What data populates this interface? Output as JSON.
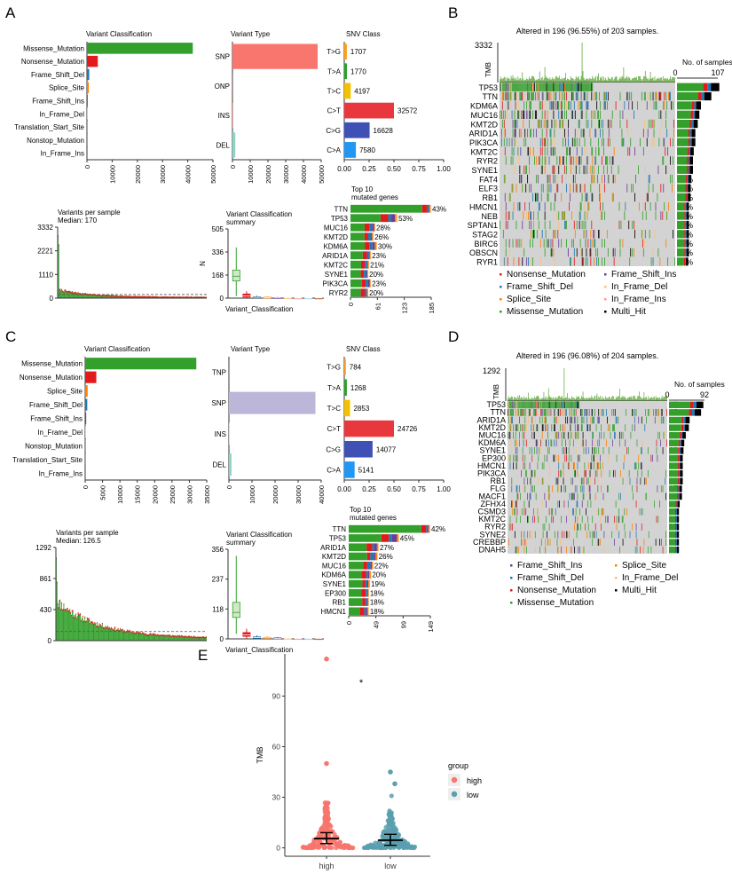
{
  "colors": {
    "missense": "#33a02c",
    "nonsense": "#e31a1c",
    "frameshift_del": "#1f78b4",
    "splice": "#ff7f00",
    "frameshift_ins": "#6a3d9a",
    "inframe_del": "#fdbf6f",
    "translation": "#fb9a99",
    "nonstop": "#a6cee3",
    "inframe_ins": "#b15928",
    "multi": "#000000",
    "snp": "#f8766d",
    "snp_c": "#bcb6d9",
    "del": "#8dd3c7",
    "tg": "#ff9f1c",
    "ta": "#2ca02c",
    "tc": "#f5c000",
    "ct": "#e8383d",
    "cg": "#3f51b5",
    "ca": "#2196f3",
    "tmb": "#5fa83a",
    "grey": "#d3d3d3",
    "high": "#f8766d",
    "low": "#5b9fb0"
  },
  "panels": {
    "a": "A",
    "b": "B",
    "c": "C",
    "d": "D",
    "e": "E"
  },
  "chart_data": [
    {
      "id": "A-vc",
      "type": "bar",
      "title": "Variant Classification",
      "categories": [
        "Missense_Mutation",
        "Nonsense_Mutation",
        "Frame_Shift_Del",
        "Splice_Site",
        "Frame_Shift_Ins",
        "In_Frame_Del",
        "Translation_Start_Site",
        "Nonstop_Mutation",
        "In_Frame_Ins"
      ],
      "values": [
        42000,
        4300,
        900,
        700,
        300,
        120,
        40,
        30,
        20
      ],
      "xticks": [
        "0",
        "10000",
        "20000",
        "30000",
        "40000",
        "50000"
      ],
      "xlim": [
        0,
        50000
      ]
    },
    {
      "id": "A-vt",
      "type": "bar",
      "title": "Variant Type",
      "categories": [
        "SNP",
        "ONP",
        "INS",
        "DEL"
      ],
      "values": [
        48000,
        60,
        300,
        1600
      ],
      "xticks": [
        "0",
        "10000",
        "20000",
        "30000",
        "40000",
        "50000"
      ],
      "xlim": [
        0,
        50000
      ]
    },
    {
      "id": "A-snv",
      "type": "bar",
      "title": "SNV Class",
      "categories": [
        "T>G",
        "T>A",
        "T>C",
        "C>T",
        "C>G",
        "C>A"
      ],
      "values": [
        1707,
        1770,
        4197,
        32572,
        16628,
        7580
      ],
      "fractions": [
        0.026,
        0.027,
        0.065,
        0.5,
        0.255,
        0.117
      ],
      "labels": [
        "1707",
        "1770",
        "4197",
        "32572",
        "16628",
        "7580"
      ],
      "xticks": [
        "0.00",
        "0.25",
        "0.50",
        "0.75",
        "1.00"
      ]
    },
    {
      "id": "A-vps",
      "type": "bar",
      "title": "Variants per sample",
      "subtitle": "Median: 170",
      "yticks": [
        "0",
        "1110",
        "2221",
        "3332"
      ],
      "ylim": [
        0,
        3332
      ],
      "median": 170
    },
    {
      "id": "A-vcs",
      "type": "box",
      "title": "Variant Classification",
      "subtitle": "summary",
      "ylabel": "N",
      "xlabel": "Variant_Classification",
      "yticks": [
        "0",
        "168",
        "336",
        "505"
      ],
      "ylim": [
        0,
        505
      ]
    },
    {
      "id": "A-top",
      "type": "bar",
      "title": "Top 10",
      "subtitle": "mutated genes",
      "categories": [
        "TTN",
        "TP53",
        "MUC16",
        "KMT2D",
        "KDM6A",
        "ARID1A",
        "KMT2C",
        "SYNE1",
        "PIK3CA",
        "RYR2"
      ],
      "values": [
        185,
        108,
        57,
        53,
        61,
        47,
        43,
        41,
        47,
        41
      ],
      "labels": [
        "43%",
        "53%",
        "28%",
        "26%",
        "30%",
        "23%",
        "21%",
        "20%",
        "23%",
        "20%"
      ],
      "xticks": [
        "0",
        "61",
        "123",
        "185"
      ],
      "xlim": [
        0,
        185
      ]
    },
    {
      "id": "B-onco",
      "type": "heatmap",
      "title": "Altered in 196 (96.55%) of 203 samples.",
      "tmb_label": "TMB",
      "tmb_max": "3332",
      "ns_label": "No. of samples",
      "ns_ticks": [
        "0",
        "107"
      ],
      "ns_max": 107,
      "genes": [
        "TP53",
        "TTN",
        "KDM6A",
        "MUC16",
        "KMT2D",
        "ARID1A",
        "PIK3CA",
        "KMT2C",
        "RYR2",
        "SYNE1",
        "FAT4",
        "ELF3",
        "RB1",
        "HMCN1",
        "NEB",
        "SPTAN1",
        "STAG2",
        "BIRC6",
        "OBSCN",
        "RYR1"
      ],
      "pct": [
        "53%",
        "43%",
        "30%",
        "28%",
        "26%",
        "23%",
        "23%",
        "21%",
        "20%",
        "20%",
        "18%",
        "17%",
        "17%",
        "15%",
        "15%",
        "15%",
        "15%",
        "15%",
        "15%",
        "14%"
      ],
      "freq": [
        0.53,
        0.43,
        0.3,
        0.28,
        0.26,
        0.23,
        0.23,
        0.21,
        0.2,
        0.2,
        0.18,
        0.17,
        0.17,
        0.15,
        0.15,
        0.15,
        0.15,
        0.15,
        0.15,
        0.14
      ],
      "legend": [
        "Nonsense_Mutation",
        "Frame_Shift_Ins",
        "Frame_Shift_Del",
        "In_Frame_Del",
        "Splice_Site",
        "In_Frame_Ins",
        "Missense_Mutation",
        "Multi_Hit"
      ]
    },
    {
      "id": "C-vc",
      "type": "bar",
      "title": "Variant Classification",
      "categories": [
        "Missense_Mutation",
        "Nonsense_Mutation",
        "Splice_Site",
        "Frame_Shift_Del",
        "Frame_Shift_Ins",
        "In_Frame_Del",
        "Nonstop_Mutation",
        "Translation_Start_Site",
        "In_Frame_Ins"
      ],
      "values": [
        32000,
        3200,
        700,
        600,
        300,
        100,
        30,
        30,
        20
      ],
      "xticks": [
        "0",
        "5000",
        "10000",
        "15000",
        "20000",
        "25000",
        "30000",
        "35000"
      ],
      "xlim": [
        0,
        35000
      ]
    },
    {
      "id": "C-vt",
      "type": "bar",
      "title": "Variant Type",
      "categories": [
        "TNP",
        "SNP",
        "INS",
        "DEL"
      ],
      "values": [
        30,
        37500,
        200,
        1100
      ],
      "xticks": [
        "0",
        "10000",
        "20000",
        "30000",
        "40000"
      ],
      "xlim": [
        0,
        40000
      ]
    },
    {
      "id": "C-snv",
      "type": "bar",
      "title": "SNV Class",
      "categories": [
        "T>G",
        "T>A",
        "T>C",
        "C>T",
        "C>G",
        "C>A"
      ],
      "values": [
        784,
        1268,
        2853,
        24726,
        14077,
        5141
      ],
      "fractions": [
        0.016,
        0.026,
        0.058,
        0.5,
        0.285,
        0.104
      ],
      "labels": [
        "784",
        "1268",
        "2853",
        "24726",
        "14077",
        "5141"
      ],
      "xticks": [
        "0.00",
        "0.25",
        "0.50",
        "0.75",
        "1.00"
      ]
    },
    {
      "id": "C-vps",
      "type": "bar",
      "title": "Variants per sample",
      "subtitle": "Median: 126.5",
      "yticks": [
        "0",
        "430",
        "861",
        "1292"
      ],
      "ylim": [
        0,
        1292
      ],
      "median": 126.5
    },
    {
      "id": "C-vcs",
      "type": "box",
      "title": "Variant Classification",
      "subtitle": "summary",
      "xlabel": "Variant_Classification",
      "yticks": [
        "0",
        "118",
        "237",
        "356"
      ],
      "ylim": [
        0,
        356
      ]
    },
    {
      "id": "C-top",
      "type": "bar",
      "title": "Top 10",
      "subtitle": "mutated genes",
      "categories": [
        "TTN",
        "TP53",
        "ARID1A",
        "KMT2D",
        "MUC16",
        "KDM6A",
        "SYNE1",
        "EP300",
        "RB1",
        "HMCN1"
      ],
      "values": [
        149,
        92,
        55,
        53,
        45,
        41,
        39,
        37,
        37,
        37
      ],
      "labels": [
        "42%",
        "45%",
        "27%",
        "26%",
        "22%",
        "20%",
        "19%",
        "18%",
        "18%",
        "18%"
      ],
      "xticks": [
        "0",
        "49",
        "99",
        "149"
      ],
      "xlim": [
        0,
        149
      ]
    },
    {
      "id": "D-onco",
      "type": "heatmap",
      "title": "Altered in 196 (96.08%) of 204 samples.",
      "tmb_label": "TMB",
      "tmb_max": "1292",
      "ns_label": "No. of samples",
      "ns_ticks": [
        "0",
        "92"
      ],
      "ns_max": 92,
      "genes": [
        "TP53",
        "TTN",
        "ARID1A",
        "KMT2D",
        "MUC16",
        "KDM6A",
        "SYNE1",
        "EP300",
        "HMCN1",
        "PIK3CA",
        "RB1",
        "FLG",
        "MACF1",
        "ZFHX4",
        "CSMD3",
        "KMT2C",
        "RYR2",
        "SYNE2",
        "CREBBP",
        "DNAH5"
      ],
      "pct": [
        "45",
        "42",
        "27",
        "26",
        "22",
        "20",
        "19",
        "18",
        "18",
        "18",
        "18",
        "17",
        "17",
        "14",
        "13",
        "13",
        "13",
        "13",
        "13",
        "13"
      ],
      "freq": [
        0.45,
        0.42,
        0.27,
        0.26,
        0.22,
        0.2,
        0.19,
        0.18,
        0.18,
        0.18,
        0.18,
        0.17,
        0.17,
        0.14,
        0.13,
        0.13,
        0.13,
        0.13,
        0.13,
        0.13
      ],
      "legend": [
        "Frame_Shift_Ins",
        "Splice_Site",
        "Frame_Shift_Del",
        "In_Frame_Del",
        "Nonsense_Mutation",
        "Multi_Hit",
        "Missense_Mutation"
      ]
    },
    {
      "id": "E-tmb",
      "type": "scatter",
      "ylabel": "TMB",
      "categories": [
        "high",
        "low"
      ],
      "yticks": [
        "0",
        "30",
        "60",
        "90"
      ],
      "ylim": [
        -5,
        115
      ],
      "legend_title": "group",
      "legend": [
        "high",
        "low"
      ],
      "significance": "*",
      "medians": [
        5.5,
        4.5
      ],
      "max": [
        112,
        45
      ]
    }
  ]
}
